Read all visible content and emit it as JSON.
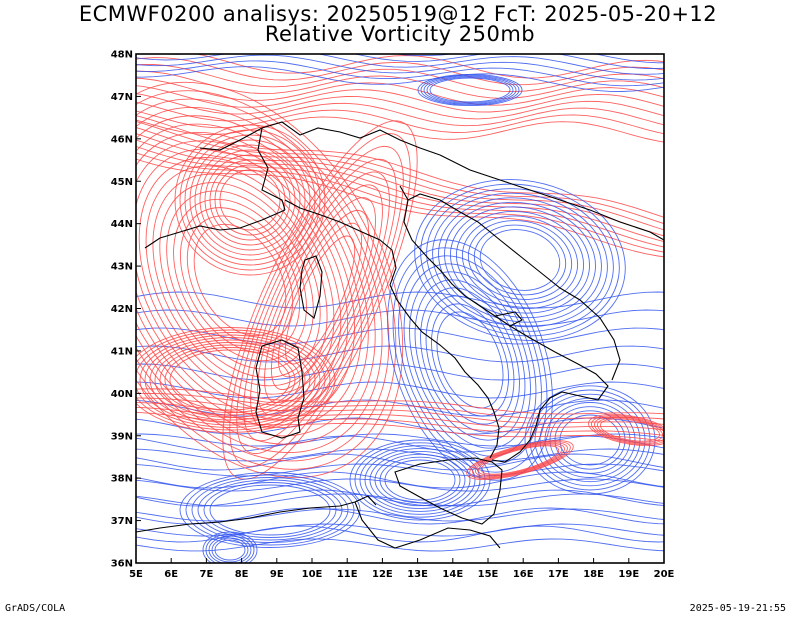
{
  "header": {
    "title_line1": "ECMWF0200 analisys: 20250519@12 FcT: 2025-05-20+12",
    "title_line2": "Relative Vorticity 250mb"
  },
  "map": {
    "lon_range": [
      5,
      20
    ],
    "lat_range": [
      36,
      48
    ],
    "lon_ticks": [
      "5E",
      "6E",
      "7E",
      "8E",
      "9E",
      "10E",
      "11E",
      "12E",
      "13E",
      "14E",
      "15E",
      "16E",
      "17E",
      "18E",
      "19E",
      "20E"
    ],
    "lat_ticks": [
      "36N",
      "37N",
      "38N",
      "39N",
      "40N",
      "41N",
      "42N",
      "43N",
      "44N",
      "45N",
      "46N",
      "47N",
      "48N"
    ],
    "positive_color": "#ff4444",
    "negative_color": "#3355ee",
    "coastline_color": "#000000"
  },
  "footer": {
    "credit": "GrADS/COLA",
    "timestamp": "2025-05-19-21:55"
  }
}
